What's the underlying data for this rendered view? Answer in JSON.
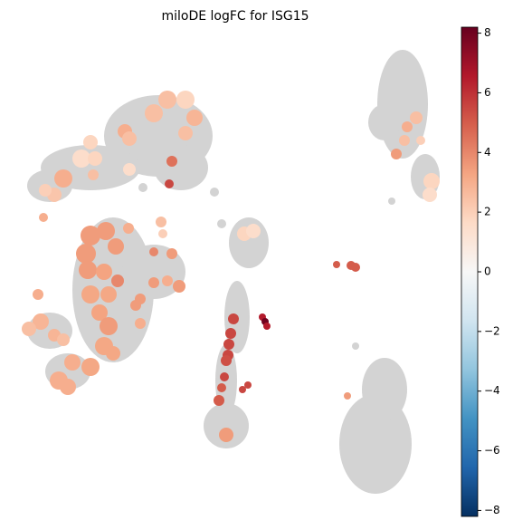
{
  "chart_data": {
    "type": "scatter",
    "title": "miloDE logFC for ISG15",
    "colormap": "RdBu_r",
    "xlim": [
      20,
      500
    ],
    "ylim": [
      570,
      30
    ],
    "x": [
      185,
      205,
      170,
      215,
      138,
      143,
      205,
      190,
      187,
      100,
      90,
      105,
      70,
      60,
      50,
      103,
      48,
      143,
      100,
      117,
      95,
      128,
      142,
      97,
      115,
      130,
      170,
      190,
      185,
      198,
      170,
      155,
      150,
      100,
      120,
      110,
      120,
      115,
      125,
      155,
      42,
      45,
      32,
      60,
      70,
      80,
      100,
      65,
      75,
      178,
      180,
      270,
      280,
      258,
      255,
      253,
      252,
      250,
      248,
      245,
      242,
      250,
      268,
      274,
      290,
      293,
      295,
      372,
      388,
      393,
      384,
      460,
      450,
      447,
      438,
      477,
      475,
      465
    ],
    "y": [
      110,
      110,
      125,
      130,
      145,
      153,
      147,
      178,
      203,
      157,
      175,
      175,
      197,
      215,
      210,
      193,
      240,
      187,
      260,
      255,
      280,
      272,
      252,
      298,
      300,
      310,
      278,
      280,
      310,
      316,
      312,
      330,
      337,
      325,
      325,
      345,
      360,
      382,
      390,
      357,
      325,
      355,
      363,
      370,
      375,
      400,
      405,
      420,
      427,
      245,
      258,
      258,
      255,
      352,
      368,
      380,
      392,
      398,
      416,
      428,
      442,
      480,
      430,
      425,
      350,
      355,
      360,
      292,
      293,
      295,
      437,
      130,
      140,
      155,
      170,
      200,
      215,
      155
    ],
    "values": [
      2.5,
      1.8,
      2.5,
      2.8,
      3,
      2.5,
      2.5,
      4.5,
      5.5,
      1.8,
      1.5,
      1.8,
      3,
      2.3,
      2,
      2.5,
      3,
      1.5,
      3.5,
      3.5,
      3.5,
      3.5,
      3,
      3.5,
      3.3,
      4,
      4,
      3.5,
      3,
      3.5,
      3.5,
      3.5,
      3.5,
      3.2,
      3.2,
      3.3,
      3.5,
      3.2,
      3.2,
      3,
      3,
      2.8,
      2.5,
      2.8,
      2.5,
      3,
      3.2,
      3,
      3,
      2.5,
      2,
      1.8,
      1.5,
      5.5,
      5.5,
      5.5,
      5.5,
      5.3,
      5.5,
      5,
      5,
      3.5,
      5.5,
      5.5,
      6.5,
      8,
      6.5,
      5,
      5,
      5,
      3.5,
      2.5,
      3,
      2.5,
      3.5,
      1.8,
      1.5,
      2
    ],
    "sizes": [
      10,
      10,
      10,
      9,
      8,
      8,
      8,
      6,
      5,
      8,
      10,
      8,
      10,
      8,
      7,
      6,
      5,
      7,
      11,
      10,
      11,
      9,
      6,
      10,
      9,
      7,
      5,
      6,
      6,
      7,
      6,
      6,
      6,
      10,
      9,
      9,
      10,
      10,
      8,
      6,
      6,
      9,
      8,
      7,
      7,
      9,
      10,
      10,
      9,
      6,
      5,
      8,
      8,
      6,
      6,
      6,
      6,
      6,
      5,
      5,
      6,
      8,
      4,
      4,
      4,
      4,
      4,
      4,
      5,
      5,
      4,
      7,
      6,
      6,
      6,
      9,
      8,
      5
    ],
    "clim": [
      -8.2,
      8.2
    ],
    "cticks": [
      {
        "value": -8,
        "label": "−8"
      },
      {
        "value": -6,
        "label": "−6"
      },
      {
        "value": -4,
        "label": "−4"
      },
      {
        "value": -2,
        "label": "−2"
      },
      0,
      2,
      4,
      6,
      8
    ]
  }
}
